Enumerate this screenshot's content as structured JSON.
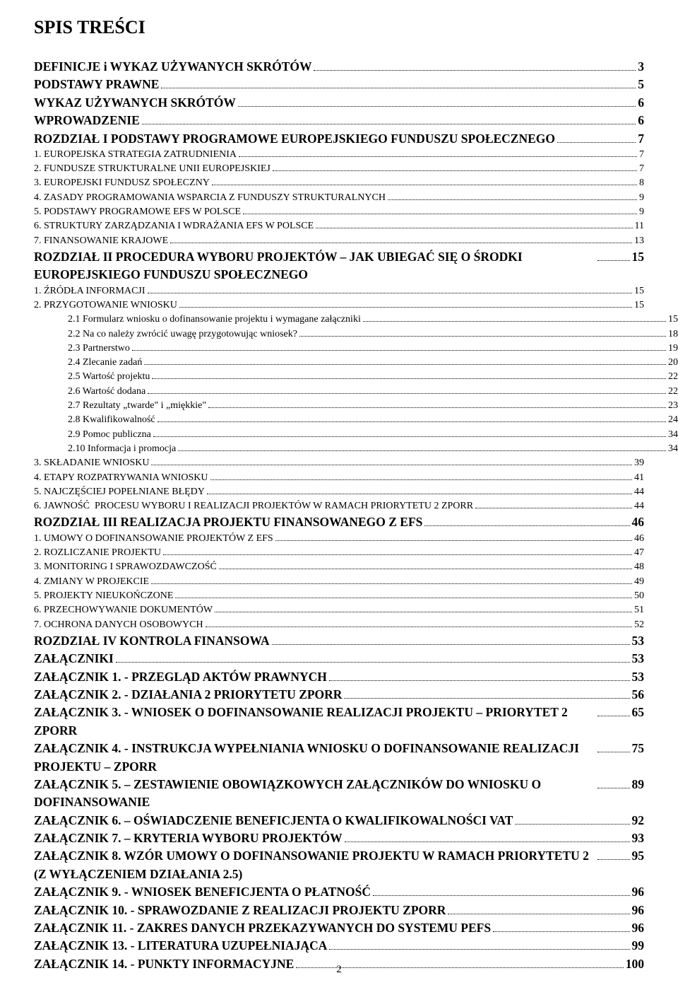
{
  "title": "SPIS TREŚCI",
  "page_number": "2",
  "entries": [
    {
      "label": "DEFINICJE i WYKAZ UŻYWANYCH SKRÓTÓW",
      "page": "3",
      "level": 0,
      "style": "bold big"
    },
    {
      "label": "PODSTAWY PRAWNE",
      "page": "5",
      "level": 0,
      "style": "bold big"
    },
    {
      "label": "WYKAZ UŻYWANYCH SKRÓTÓW",
      "page": "6",
      "level": 0,
      "style": "bold big"
    },
    {
      "label": "WPROWADZENIE",
      "page": "6",
      "level": 0,
      "style": "bold big"
    },
    {
      "label": "ROZDZIAŁ I PODSTAWY PROGRAMOWE EUROPEJSKIEGO FUNDUSZU SPOŁECZNEGO",
      "page": "7",
      "level": 0,
      "style": "bold big"
    },
    {
      "label": "1. EUROPEJSKA STRATEGIA ZATRUDNIENIA",
      "page": "7",
      "level": 1,
      "style": "sc"
    },
    {
      "label": "2. FUNDUSZE STRUKTURALNE UNII EUROPEJSKIEJ",
      "page": "7",
      "level": 1,
      "style": "sc"
    },
    {
      "label": "3. EUROPEJSKI FUNDUSZ SPOŁECZNY",
      "page": "8",
      "level": 1,
      "style": "sc"
    },
    {
      "label": "4. ZASADY PROGRAMOWANIA WSPARCIA Z FUNDUSZY STRUKTURALNYCH",
      "page": "9",
      "level": 1,
      "style": "sc"
    },
    {
      "label": "5. PODSTAWY PROGRAMOWE EFS W POLSCE",
      "page": "9",
      "level": 1,
      "style": "sc"
    },
    {
      "label": "6. STRUKTURY ZARZĄDZANIA I WDRAŻANIA EFS W POLSCE",
      "page": "11",
      "level": 1,
      "style": "sc"
    },
    {
      "label": "7. FINANSOWANIE KRAJOWE",
      "page": "13",
      "level": 1,
      "style": "sc"
    },
    {
      "label": "ROZDZIAŁ II PROCEDURA WYBORU PROJEKTÓW – JAK UBIEGAĆ SIĘ  O ŚRODKI EUROPEJSKIEGO FUNDUSZU SPOŁECZNEGO",
      "page": "15",
      "level": 0,
      "style": "bold big"
    },
    {
      "label": "1. ŹRÓDŁA INFORMACJI",
      "page": "15",
      "level": 1,
      "style": "sc"
    },
    {
      "label": "2. PRZYGOTOWANIE WNIOSKU",
      "page": "15",
      "level": 1,
      "style": "sc"
    },
    {
      "label": "2.1 Formularz wniosku o dofinansowanie projektu i wymagane załączniki",
      "page": "15",
      "level": 2,
      "style": ""
    },
    {
      "label": "2.2 Na co należy zwrócić uwagę przygotowując wniosek?",
      "page": "18",
      "level": 2,
      "style": ""
    },
    {
      "label": "2.3 Partnerstwo",
      "page": "19",
      "level": 2,
      "style": ""
    },
    {
      "label": "2.4 Zlecanie zadań",
      "page": "20",
      "level": 2,
      "style": ""
    },
    {
      "label": "2.5 Wartość projektu",
      "page": "22",
      "level": 2,
      "style": ""
    },
    {
      "label": "2.6 Wartość dodana",
      "page": "22",
      "level": 2,
      "style": ""
    },
    {
      "label": "2.7 Rezultaty „twarde\" i „miękkie\"",
      "page": "23",
      "level": 2,
      "style": ""
    },
    {
      "label": "2.8 Kwalifikowalność",
      "page": "24",
      "level": 2,
      "style": ""
    },
    {
      "label": "2.9 Pomoc publiczna",
      "page": "34",
      "level": 2,
      "style": ""
    },
    {
      "label": "2.10 Informacja i promocja",
      "page": "34",
      "level": 2,
      "style": ""
    },
    {
      "label": "3. SKŁADANIE WNIOSKU",
      "page": "39",
      "level": 1,
      "style": "sc"
    },
    {
      "label": "4. ETAPY ROZPATRYWANIA WNIOSKU",
      "page": "41",
      "level": 1,
      "style": "sc"
    },
    {
      "label": "5. NAJCZĘŚCIEJ POPEŁNIANE BŁĘDY",
      "page": "44",
      "level": 1,
      "style": "sc"
    },
    {
      "label": "6. JAWNOŚĆ  PROCESU WYBORU I REALIZACJI PROJEKTÓW W RAMACH PRIORYTETU 2 ZPORR",
      "page": "44",
      "level": 1,
      "style": "sc"
    },
    {
      "label": "ROZDZIAŁ III REALIZACJA PROJEKTU FINANSOWANEGO Z EFS",
      "page": "46",
      "level": 0,
      "style": "bold big"
    },
    {
      "label": "1. UMOWY O DOFINANSOWANIE PROJEKTÓW Z EFS",
      "page": "46",
      "level": 1,
      "style": "sc"
    },
    {
      "label": "2. ROZLICZANIE PROJEKTU",
      "page": "47",
      "level": 1,
      "style": "sc"
    },
    {
      "label": "3. MONITORING I SPRAWOZDAWCZOŚĆ",
      "page": "48",
      "level": 1,
      "style": "sc"
    },
    {
      "label": "4. ZMIANY W PROJEKCIE",
      "page": "49",
      "level": 1,
      "style": "sc"
    },
    {
      "label": "5. PROJEKTY NIEUKOŃCZONE",
      "page": "50",
      "level": 1,
      "style": "sc"
    },
    {
      "label": "6. PRZECHOWYWANIE DOKUMENTÓW",
      "page": "51",
      "level": 1,
      "style": "sc"
    },
    {
      "label": "7. OCHRONA DANYCH OSOBOWYCH",
      "page": "52",
      "level": 1,
      "style": "sc"
    },
    {
      "label": "ROZDZIAŁ IV KONTROLA FINANSOWA",
      "page": "53",
      "level": 0,
      "style": "bold big"
    },
    {
      "label": "ZAŁĄCZNIKI",
      "page": "53",
      "level": 0,
      "style": "bold big"
    },
    {
      "label": "ZAŁĄCZNIK 1.  - PRZEGLĄD AKTÓW PRAWNYCH",
      "page": "53",
      "level": 0,
      "style": "bold big"
    },
    {
      "label": "ZAŁĄCZNIK 2. - DZIAŁANIA  2 PRIORYTETU ZPORR",
      "page": "56",
      "level": 0,
      "style": "bold big"
    },
    {
      "label": "ZAŁĄCZNIK 3. - WNIOSEK O DOFINANSOWANIE REALIZACJI PROJEKTU – PRIORYTET 2 ZPORR",
      "page": "65",
      "level": 0,
      "style": "bold big"
    },
    {
      "label": "ZAŁĄCZNIK 4.  - INSTRUKCJA WYPEŁNIANIA WNIOSKU  O DOFINANSOWANIE REALIZACJI PROJEKTU – ZPORR",
      "page": "75",
      "level": 0,
      "style": "bold big"
    },
    {
      "label": "ZAŁĄCZNIK 5. – ZESTAWIENIE OBOWIĄZKOWYCH ZAŁĄCZNIKÓW DO WNIOSKU O DOFINANSOWANIE",
      "page": "89",
      "level": 0,
      "style": "bold big"
    },
    {
      "label": "ZAŁĄCZNIK 6. – OŚWIADCZENIE BENEFICJENTA O KWALIFIKOWALNOŚCI VAT",
      "page": "92",
      "level": 0,
      "style": "bold big"
    },
    {
      "label": "ZAŁĄCZNIK 7. – KRYTERIA WYBORU PROJEKTÓW",
      "page": "93",
      "level": 0,
      "style": "bold big"
    },
    {
      "label": "ZAŁĄCZNIK 8. WZÓR UMOWY O DOFINANSOWANIE PROJEKTU W RAMACH PRIORYTETU 2 (Z WYŁĄCZENIEM DZIAŁANIA 2.5)",
      "page": "95",
      "level": 0,
      "style": "bold big"
    },
    {
      "label": "ZAŁĄCZNIK 9. - WNIOSEK BENEFICJENTA O PŁATNOŚĆ",
      "page": "96",
      "level": 0,
      "style": "bold big"
    },
    {
      "label": "ZAŁĄCZNIK 10.  - SPRAWOZDANIE Z REALIZACJI PROJEKTU ZPORR",
      "page": "96",
      "level": 0,
      "style": "bold big"
    },
    {
      "label": "ZAŁĄCZNIK 11. - ZAKRES DANYCH PRZEKAZYWANYCH DO SYSTEMU PEFS",
      "page": "96",
      "level": 0,
      "style": "bold big"
    },
    {
      "label": "ZAŁĄCZNIK 13. - LITERATURA UZUPEŁNIAJĄCA",
      "page": "99",
      "level": 0,
      "style": "bold big"
    },
    {
      "label": "ZAŁĄCZNIK 14. - PUNKTY INFORMACYJNE",
      "page": "100",
      "level": 0,
      "style": "bold big"
    }
  ]
}
